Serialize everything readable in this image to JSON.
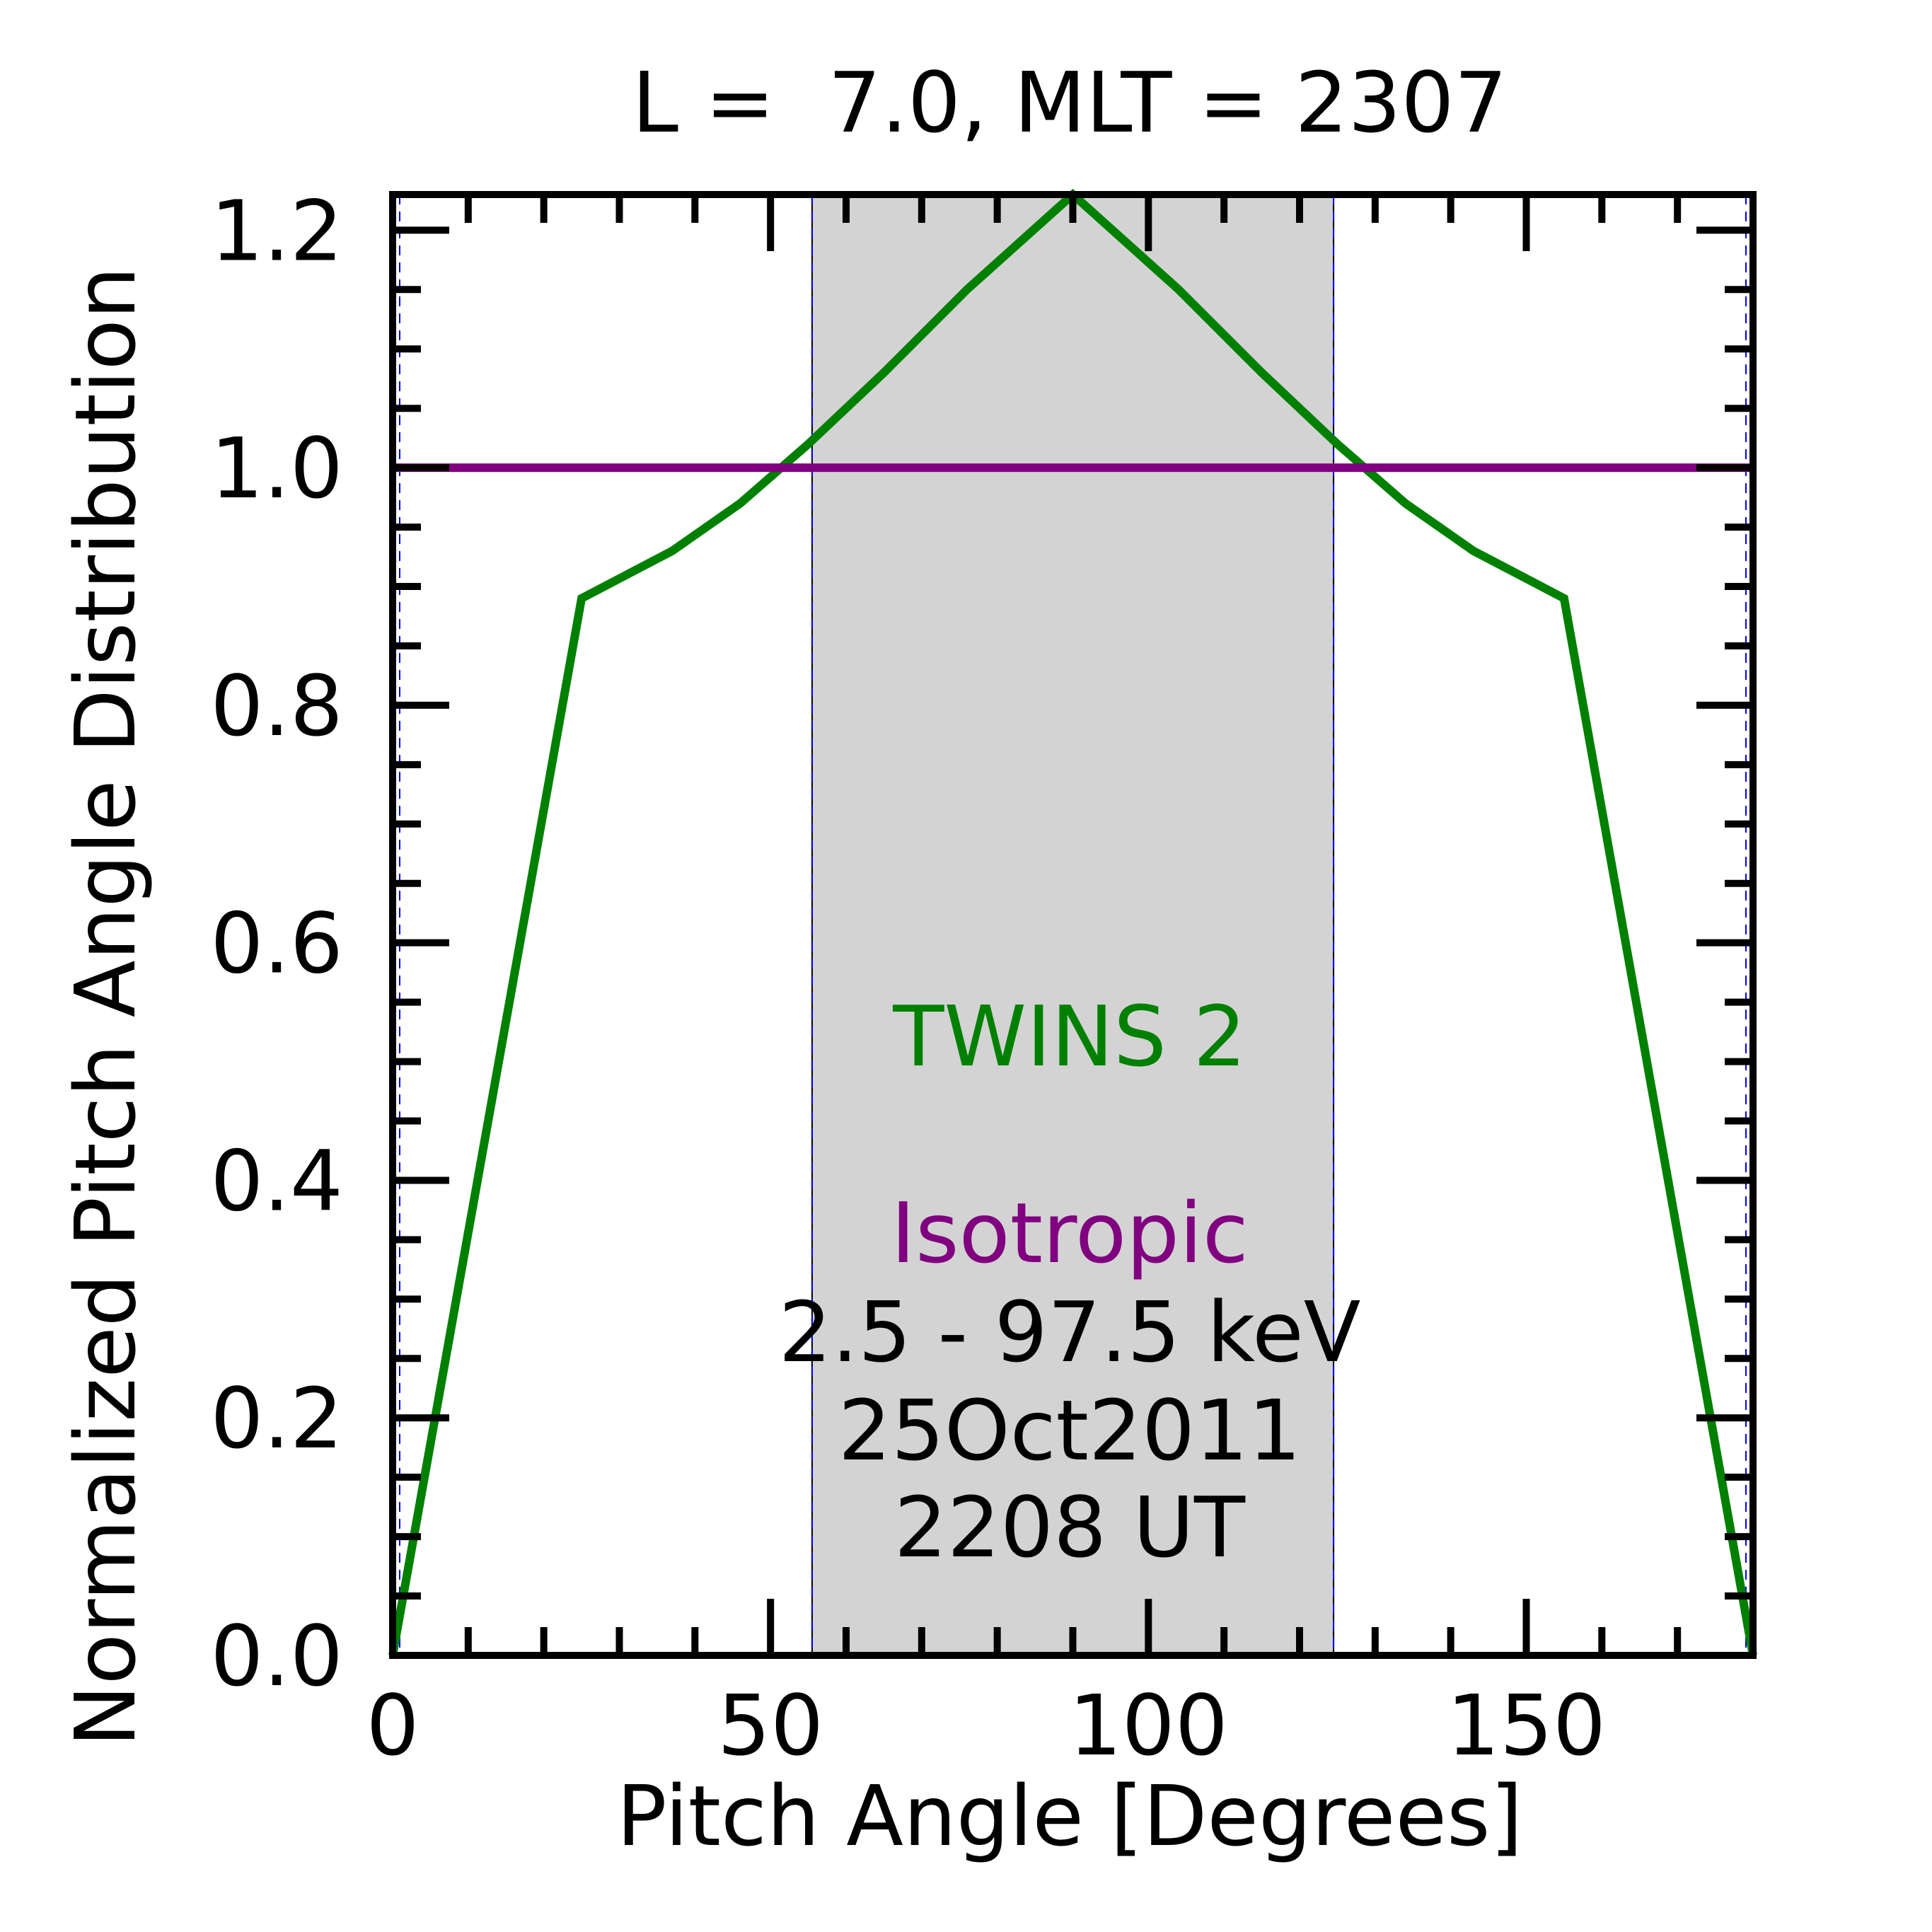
{
  "chart_data": {
    "type": "line",
    "title": "L =  7.0, MLT = 2307",
    "xlabel": "Pitch Angle [Degrees]",
    "ylabel": "Normalized Pitch Angle Distribution",
    "xlim": [
      0,
      180
    ],
    "ylim": [
      0,
      1.23
    ],
    "xticks": [
      0,
      50,
      100,
      150
    ],
    "xtick_labels": [
      "0",
      "50",
      "100",
      "150"
    ],
    "yticks": [
      0.0,
      0.2,
      0.4,
      0.6,
      0.8,
      1.0,
      1.2
    ],
    "ytick_labels": [
      "0.0",
      "0.2",
      "0.4",
      "0.6",
      "0.8",
      "1.0",
      "1.2"
    ],
    "x_minor_step": 10,
    "y_minor_step": 0.05,
    "grid": false,
    "shaded_region": {
      "x": [
        55.5,
        124.5
      ],
      "color": "#d3d3d3"
    },
    "series": [
      {
        "name": "TWINS 2",
        "color": "#008000",
        "x": [
          0,
          25,
          37,
          46,
          55,
          65,
          76,
          90,
          104,
          115,
          125,
          134,
          143,
          155,
          180
        ],
        "y": [
          0.0,
          0.89,
          0.93,
          0.97,
          1.02,
          1.08,
          1.15,
          1.23,
          1.15,
          1.08,
          1.02,
          0.97,
          0.93,
          0.89,
          0.0
        ]
      },
      {
        "name": "Isotropic",
        "color": "#800080",
        "x": [
          0,
          180
        ],
        "y": [
          1.0,
          1.0
        ]
      }
    ],
    "annotations": [
      {
        "text": "TWINS 2",
        "color": "#008000"
      },
      {
        "text": "Isotropic",
        "color": "#800080"
      },
      {
        "text": "2.5 - 97.5 keV",
        "color": "#000000"
      },
      {
        "text": "25Oct2011",
        "color": "#000000"
      },
      {
        "text": "2208 UT",
        "color": "#000000"
      }
    ]
  }
}
